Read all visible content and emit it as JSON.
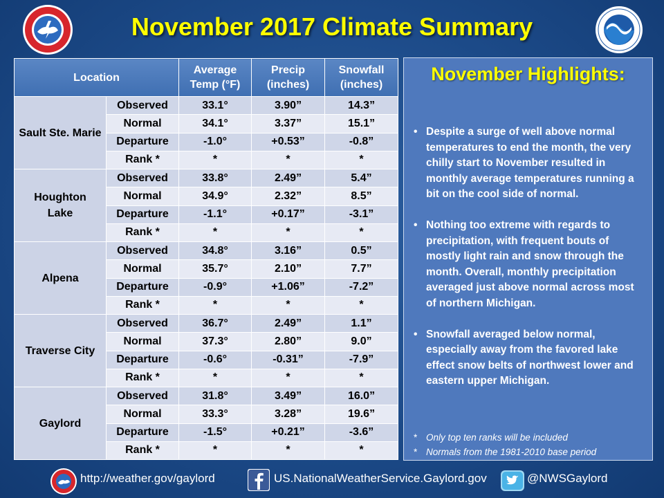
{
  "title": "November 2017 Climate Summary",
  "table": {
    "headers": {
      "location": "Location",
      "avg_temp": [
        "Average",
        "Temp (°F)"
      ],
      "precip": [
        "Precip",
        "(inches)"
      ],
      "snowfall": [
        "Snowfall",
        "(inches)"
      ]
    },
    "row_labels": [
      "Observed",
      "Normal",
      "Departure",
      "Rank *"
    ],
    "locations": [
      {
        "name_lines": [
          "Sault Ste. Marie"
        ],
        "rows": [
          [
            "33.1°",
            "3.90”",
            "14.3”"
          ],
          [
            "34.1°",
            "3.37”",
            "15.1”"
          ],
          [
            "-1.0°",
            "+0.53”",
            "-0.8”"
          ],
          [
            "*",
            "*",
            "*"
          ]
        ]
      },
      {
        "name_lines": [
          "Houghton",
          "Lake"
        ],
        "rows": [
          [
            "33.8°",
            "2.49”",
            "5.4”"
          ],
          [
            "34.9°",
            "2.32”",
            "8.5”"
          ],
          [
            "-1.1°",
            "+0.17”",
            "-3.1”"
          ],
          [
            "*",
            "*",
            "*"
          ]
        ]
      },
      {
        "name_lines": [
          "Alpena"
        ],
        "rows": [
          [
            "34.8°",
            "3.16”",
            "0.5”"
          ],
          [
            "35.7°",
            "2.10”",
            "7.7”"
          ],
          [
            "-0.9°",
            "+1.06”",
            "-7.2”"
          ],
          [
            "*",
            "*",
            "*"
          ]
        ]
      },
      {
        "name_lines": [
          "Traverse City"
        ],
        "rows": [
          [
            "36.7°",
            "2.49”",
            "1.1”"
          ],
          [
            "37.3°",
            "2.80”",
            "9.0”"
          ],
          [
            "-0.6°",
            "-0.31”",
            "-7.9”"
          ],
          [
            "*",
            "*",
            "*"
          ]
        ]
      },
      {
        "name_lines": [
          "Gaylord"
        ],
        "rows": [
          [
            "31.8°",
            "3.49”",
            "16.0”"
          ],
          [
            "33.3°",
            "3.28”",
            "19.6”"
          ],
          [
            "-1.5°",
            "+0.21”",
            "-3.6”"
          ],
          [
            "*",
            "*",
            "*"
          ]
        ]
      }
    ]
  },
  "highlights": {
    "title": "November Highlights:",
    "bullets": [
      "Despite a surge of well above normal temperatures to end the month, the very chilly start to November resulted in monthly average temperatures running a bit on the cool side of normal.",
      "Nothing too extreme with regards to precipitation, with frequent bouts of mostly light rain and snow through the month.  Overall, monthly precipitation averaged just above normal across most of northern Michigan.",
      "Snowfall averaged below normal, especially away from the favored lake effect snow belts of northwest lower and eastern upper Michigan."
    ],
    "notes": [
      "Only top ten ranks will be included",
      "Normals from the 1981-2010 base period"
    ]
  },
  "footer": {
    "website": "http://weather.gov/gaylord",
    "facebook": "US.NationalWeatherService.Gaylord.gov",
    "twitter": "@NWSGaylord"
  },
  "icons": {
    "nws_logo": "nws-logo-icon",
    "noaa_logo": "noaa-logo-icon",
    "facebook": "facebook-icon",
    "twitter": "twitter-icon"
  },
  "colors": {
    "title": "#ffff00",
    "background": "#1c4a88",
    "header": "#4a7abc",
    "panel": "#4f79bd"
  }
}
